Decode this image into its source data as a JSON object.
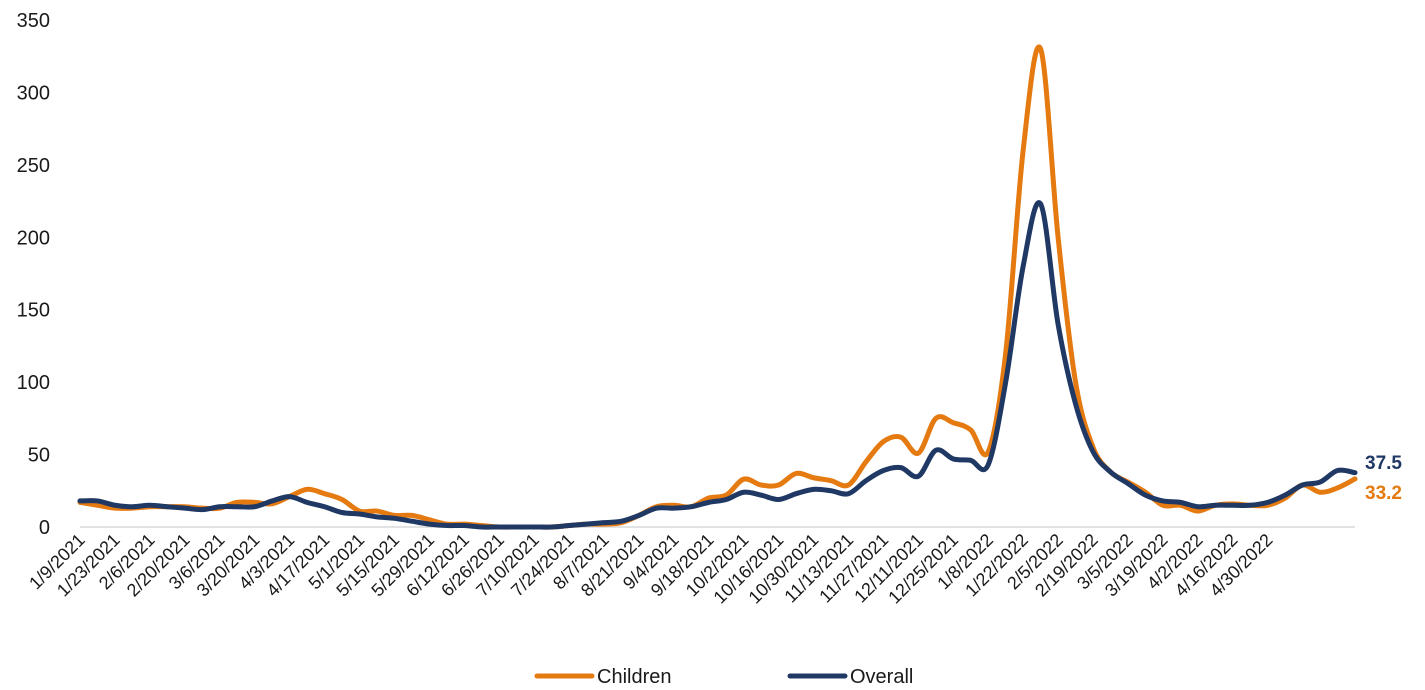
{
  "chart_data": {
    "type": "line",
    "title": "",
    "xlabel": "",
    "ylabel": "",
    "ylim": [
      0,
      350
    ],
    "y_ticks": [
      0,
      50,
      100,
      150,
      200,
      250,
      300,
      350
    ],
    "grid": false,
    "legend_position": "bottom",
    "x_tick_labels": [
      "1/9/2021",
      "1/23/2021",
      "2/6/2021",
      "2/20/2021",
      "3/6/2021",
      "3/20/2021",
      "4/3/2021",
      "4/17/2021",
      "5/1/2021",
      "5/15/2021",
      "5/29/2021",
      "6/12/2021",
      "6/26/2021",
      "7/10/2021",
      "7/24/2021",
      "8/7/2021",
      "8/21/2021",
      "9/4/2021",
      "9/18/2021",
      "10/2/2021",
      "10/16/2021",
      "10/30/2021",
      "11/13/2021",
      "11/27/2021",
      "12/11/2021",
      "12/25/2021",
      "1/8/2022",
      "1/22/2022",
      "2/5/2022",
      "2/19/2022",
      "3/5/2022",
      "3/19/2022",
      "4/2/2022",
      "4/16/2022",
      "4/30/2022"
    ],
    "series": [
      {
        "name": "Children",
        "color": "#E57A10",
        "end_label": "33.2",
        "values": [
          17,
          15,
          13,
          13,
          14,
          14,
          14,
          13,
          13,
          17,
          17,
          16,
          21,
          26,
          23,
          19,
          11,
          11,
          8,
          8,
          5,
          2,
          2,
          1,
          0,
          0,
          0,
          0,
          1,
          2,
          2,
          3,
          8,
          14,
          15,
          14,
          20,
          22,
          33,
          29,
          29,
          37,
          34,
          32,
          29,
          45,
          59,
          62,
          51,
          75,
          72,
          67,
          52,
          120,
          260,
          330,
          200,
          100,
          55,
          38,
          31,
          24,
          15,
          15,
          11,
          15,
          16,
          15,
          15,
          20,
          29,
          24,
          27,
          33.2
        ]
      },
      {
        "name": "Overall",
        "color": "#1F3864",
        "end_label": "37.5",
        "values": [
          18,
          18,
          15,
          14,
          15,
          14,
          13,
          12,
          14,
          14,
          14,
          18,
          21,
          17,
          14,
          10,
          9,
          7,
          6,
          4,
          2,
          1,
          1,
          0,
          0,
          0,
          0,
          0,
          1,
          2,
          3,
          4,
          8,
          13,
          13,
          14,
          17,
          19,
          24,
          22,
          19,
          23,
          26,
          25,
          23,
          32,
          39,
          41,
          35,
          53,
          47,
          46,
          43,
          100,
          180,
          223,
          140,
          85,
          52,
          38,
          30,
          22,
          18,
          17,
          14,
          15,
          15,
          15,
          17,
          22,
          29,
          31,
          39,
          37.5
        ]
      }
    ]
  }
}
